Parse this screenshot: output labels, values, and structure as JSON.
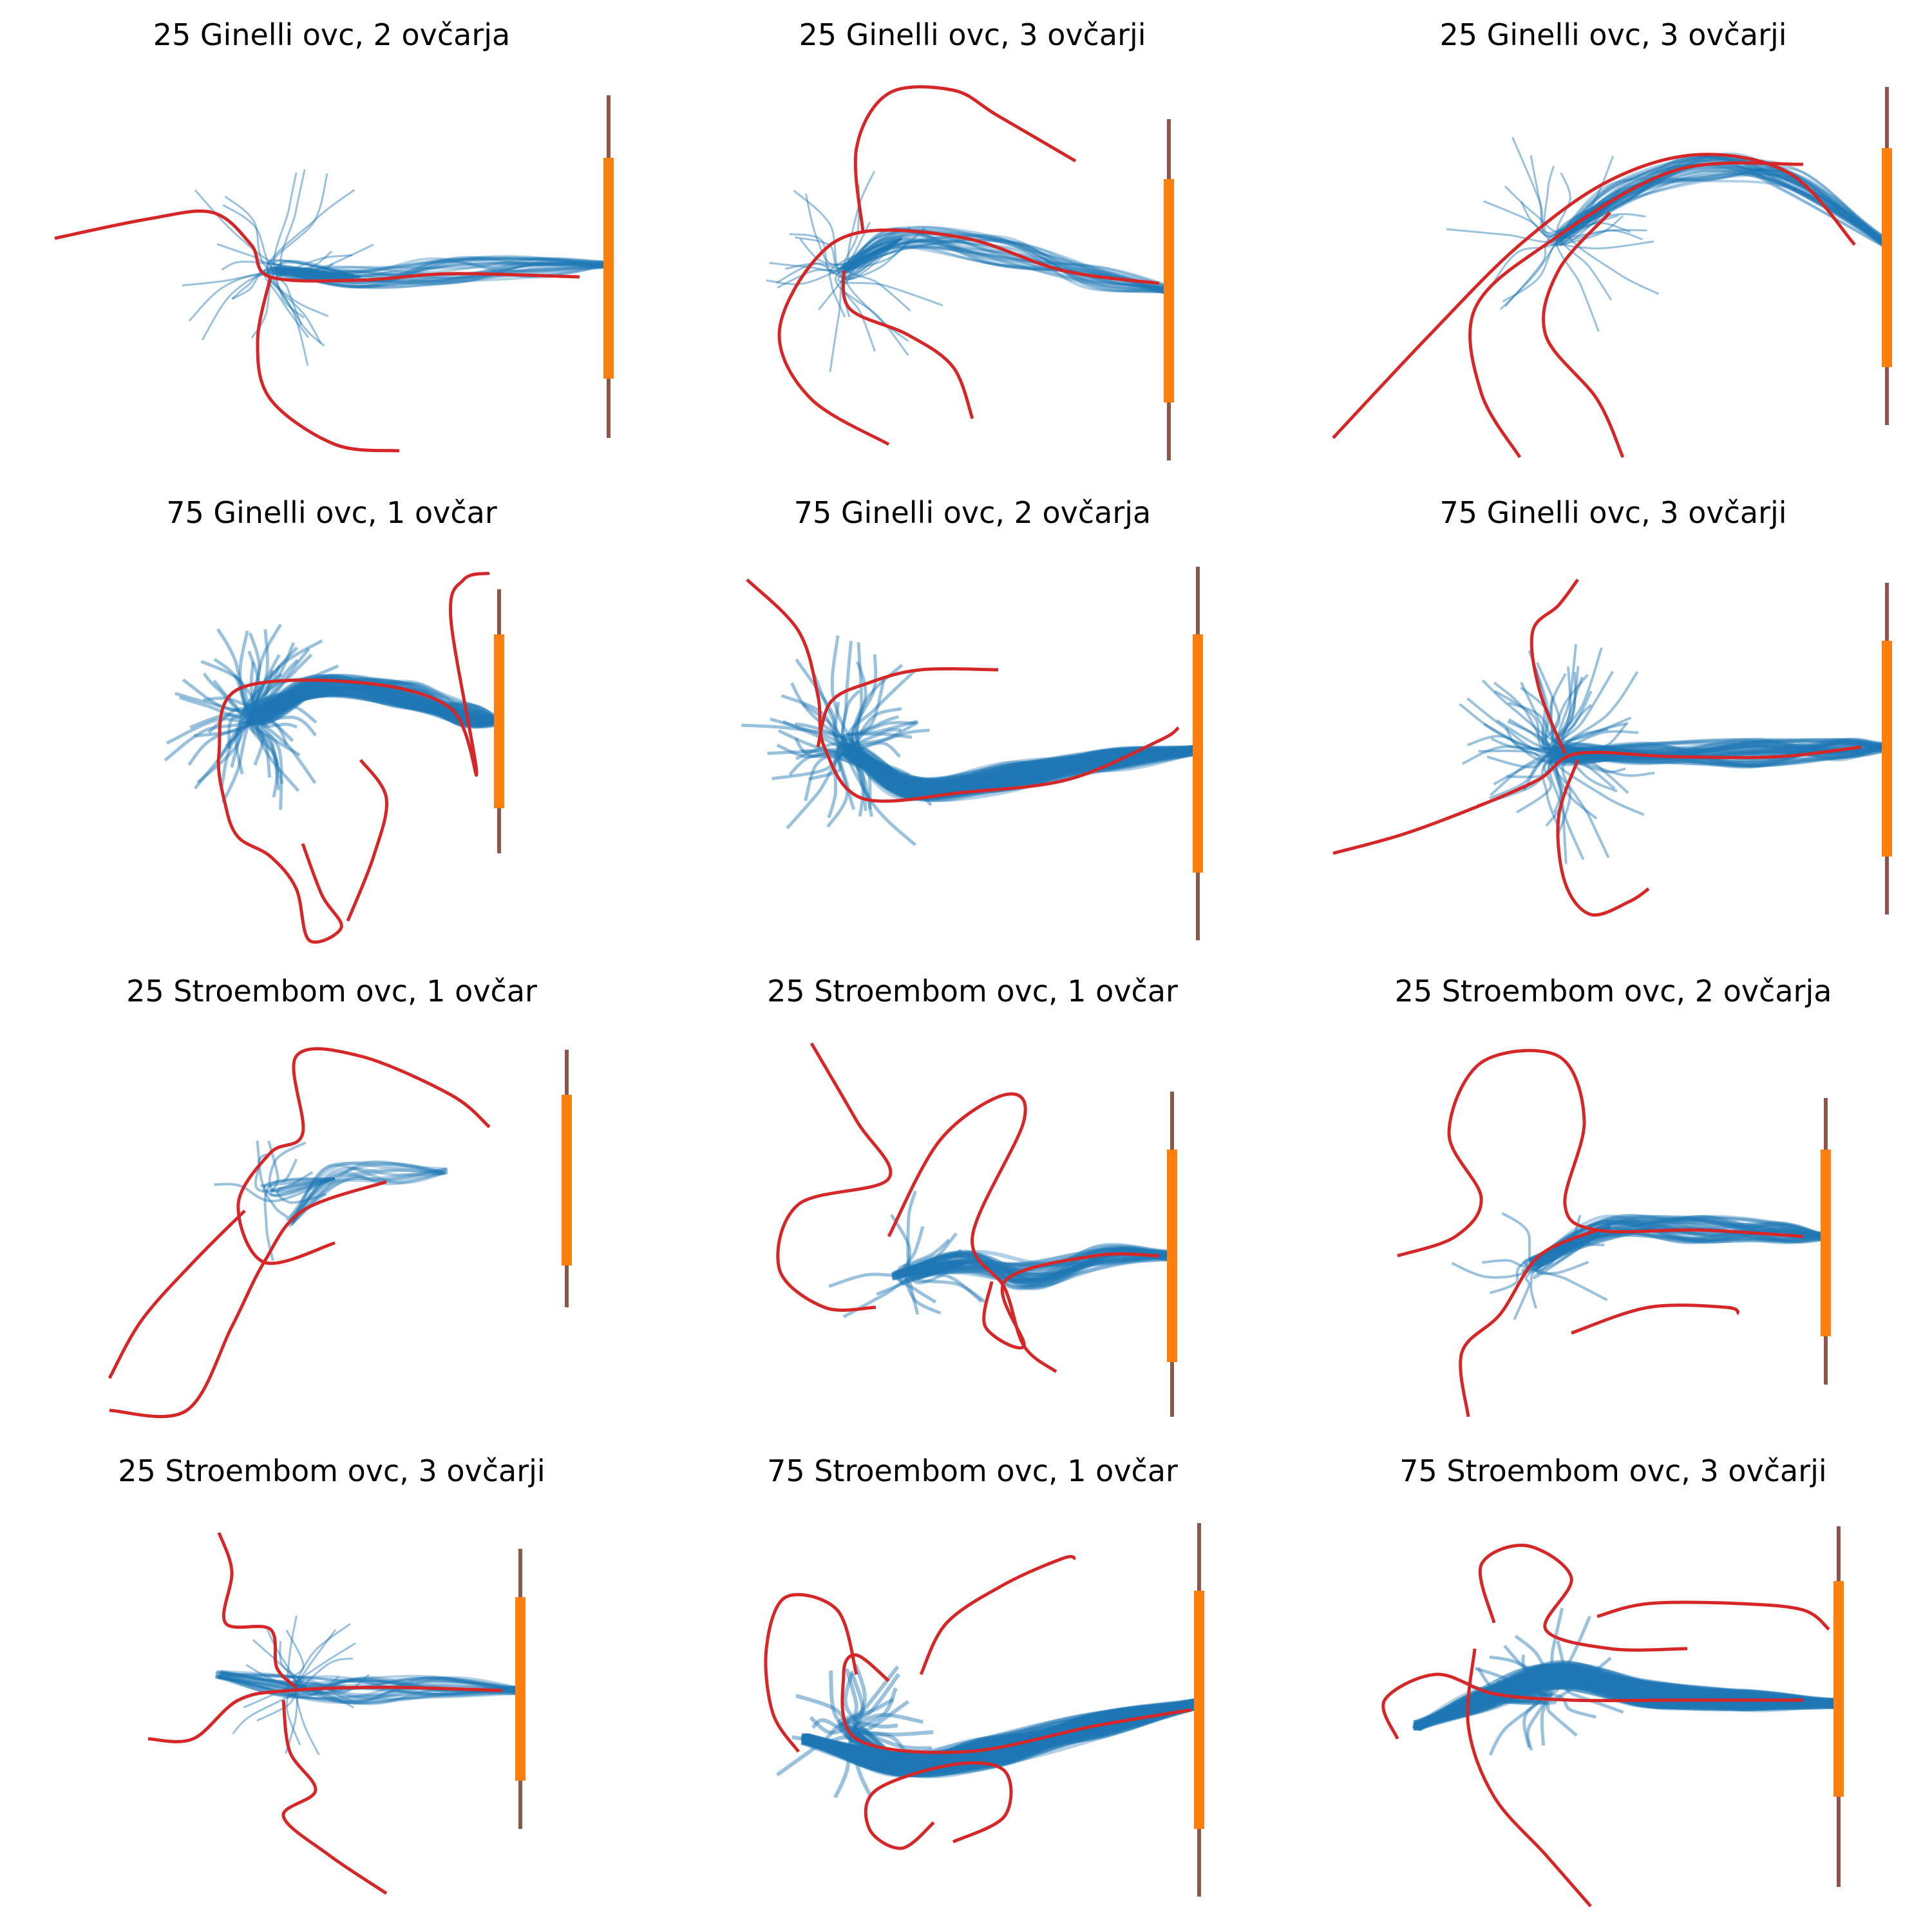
{
  "figure": {
    "panels": [
      {
        "title": "25 Ginelli ovc, 2 ovčarja"
      },
      {
        "title": "25 Ginelli ovc, 3 ovčarji"
      },
      {
        "title": "25 Ginelli ovc, 3 ovčarji"
      },
      {
        "title": "75 Ginelli ovc, 1 ovčar"
      },
      {
        "title": "75 Ginelli ovc, 2 ovčarja"
      },
      {
        "title": "75 Ginelli ovc, 3 ovčarji"
      },
      {
        "title": "25 Stroembom ovc, 1 ovčar"
      },
      {
        "title": "25 Stroembom ovc, 1 ovčar"
      },
      {
        "title": "25 Stroembom ovc, 2 ovčarja"
      },
      {
        "title": "25 Stroembom ovc, 3 ovčarji"
      },
      {
        "title": "75 Stroembom ovc, 1 ovčar"
      },
      {
        "title": "75 Stroembom ovc, 3 ovčarji"
      }
    ]
  },
  "colors": {
    "sheep_paths": "#1f77b4",
    "dog_paths": "#d62728",
    "goal": "#ff7f0e",
    "fence": "#8c564b"
  },
  "chart_data": {
    "type": "line",
    "grid": false,
    "axes": "off",
    "panels": [
      {
        "sheep_count": 25,
        "model": "Ginelli",
        "dogs": 2
      },
      {
        "sheep_count": 25,
        "model": "Ginelli",
        "dogs": 3
      },
      {
        "sheep_count": 25,
        "model": "Ginelli",
        "dogs": 3
      },
      {
        "sheep_count": 75,
        "model": "Ginelli",
        "dogs": 1
      },
      {
        "sheep_count": 75,
        "model": "Ginelli",
        "dogs": 2
      },
      {
        "sheep_count": 75,
        "model": "Ginelli",
        "dogs": 3
      },
      {
        "sheep_count": 25,
        "model": "Stroembom",
        "dogs": 1
      },
      {
        "sheep_count": 25,
        "model": "Stroembom",
        "dogs": 1
      },
      {
        "sheep_count": 25,
        "model": "Stroembom",
        "dogs": 2
      },
      {
        "sheep_count": 25,
        "model": "Stroembom",
        "dogs": 3
      },
      {
        "sheep_count": 75,
        "model": "Stroembom",
        "dogs": 1
      },
      {
        "sheep_count": 75,
        "model": "Stroembom",
        "dogs": 3
      }
    ]
  }
}
